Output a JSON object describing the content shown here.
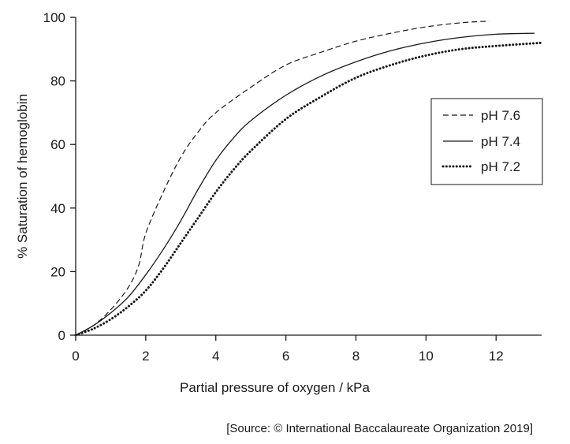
{
  "chart_data": {
    "type": "line",
    "xlabel": "Partial pressure of oxygen / kPa",
    "ylabel": "% Saturation of hemoglobin",
    "xlim": [
      0,
      13.3
    ],
    "ylim": [
      0,
      100
    ],
    "x_ticks": [
      0,
      2,
      4,
      6,
      8,
      10,
      12
    ],
    "y_ticks": [
      0,
      20,
      40,
      60,
      80,
      100
    ],
    "grid": false,
    "legend_position": "right",
    "series": [
      {
        "name": "pH 7.6",
        "style": "dashed",
        "color": "#1a1a1a",
        "points": [
          [
            0,
            0
          ],
          [
            0.5,
            3
          ],
          [
            1,
            8
          ],
          [
            1.5,
            15
          ],
          [
            1.8,
            22
          ],
          [
            2,
            32
          ],
          [
            2.5,
            45
          ],
          [
            3,
            56
          ],
          [
            3.5,
            64
          ],
          [
            4,
            70
          ],
          [
            5,
            78
          ],
          [
            6,
            85
          ],
          [
            7,
            89
          ],
          [
            8,
            92.5
          ],
          [
            9,
            95
          ],
          [
            10,
            97
          ],
          [
            11,
            98.3
          ],
          [
            11.8,
            98.8
          ]
        ]
      },
      {
        "name": "pH 7.4",
        "style": "solid",
        "color": "#1a1a1a",
        "points": [
          [
            0,
            0
          ],
          [
            0.5,
            3
          ],
          [
            1,
            7
          ],
          [
            1.5,
            12
          ],
          [
            2,
            19
          ],
          [
            2.5,
            27
          ],
          [
            3,
            36
          ],
          [
            3.5,
            46
          ],
          [
            4,
            55
          ],
          [
            4.5,
            62
          ],
          [
            5,
            67.5
          ],
          [
            6,
            75.5
          ],
          [
            7,
            81.5
          ],
          [
            8,
            86
          ],
          [
            9,
            89.5
          ],
          [
            10,
            92
          ],
          [
            11,
            93.7
          ],
          [
            12,
            94.7
          ],
          [
            13.1,
            95
          ]
        ]
      },
      {
        "name": "pH 7.2",
        "style": "dotted",
        "color": "#1a1a1a",
        "points": [
          [
            0,
            0
          ],
          [
            0.5,
            2
          ],
          [
            1,
            5
          ],
          [
            1.5,
            9
          ],
          [
            2,
            14
          ],
          [
            2.5,
            21
          ],
          [
            3,
            29
          ],
          [
            3.5,
            37
          ],
          [
            4,
            45
          ],
          [
            4.5,
            52
          ],
          [
            5,
            58
          ],
          [
            6,
            68
          ],
          [
            7,
            75
          ],
          [
            8,
            81
          ],
          [
            9,
            85
          ],
          [
            10,
            88
          ],
          [
            11,
            90
          ],
          [
            12,
            91
          ],
          [
            13.3,
            92
          ]
        ]
      }
    ]
  },
  "source": "[Source: © International Baccalaureate Organization 2019]"
}
